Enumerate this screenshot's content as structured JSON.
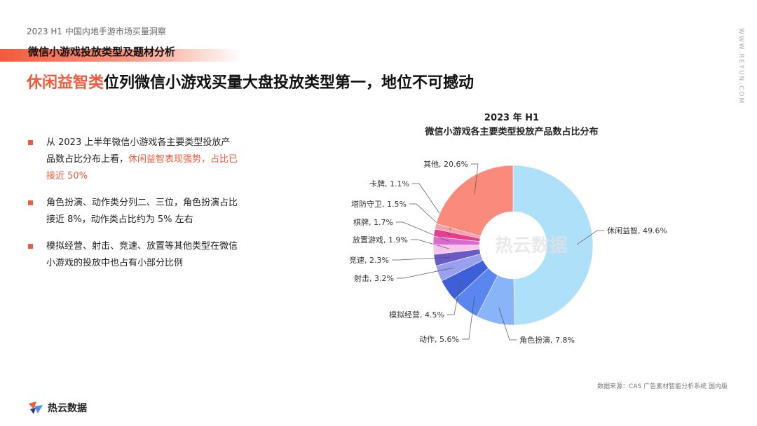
{
  "header": {
    "report_name": "2023 H1 中国内地手游市场买量洞察",
    "section_title": "微信小游戏投放类型及题材分析",
    "headline_highlight": "休闲益智类",
    "headline_rest": "位列微信小游戏买量大盘投放类型第一，地位不可撼动",
    "site": "WWW.REYUN.COM"
  },
  "bullets": [
    {
      "text": "从 2023 上半年微信小游戏各主要类型投放产品数占比分布上看，",
      "highlight": "休闲益智表现强势，占比已接近 50%"
    },
    {
      "text": "角色扮演、动作类分列二、三位，角色扮演占比接近 8%，动作类占比约为 5% 左右",
      "highlight": ""
    },
    {
      "text": "模拟经营、射击、竞速、放置等其他类型在微信小游戏的投放中也占有小部分比例",
      "highlight": ""
    }
  ],
  "chart_data": {
    "type": "pie",
    "title_line1": "2023 年 H1",
    "title_line2": "微信小游戏各主要类型投放产品数占比分布",
    "watermark": "热云数据",
    "slices": [
      {
        "label": "休闲益智",
        "value": 49.6,
        "display": "49.6%",
        "color": "#aee0fa"
      },
      {
        "label": "角色扮演",
        "value": 7.8,
        "display": "7.8%",
        "color": "#8ab4f8"
      },
      {
        "label": "动作",
        "value": 5.6,
        "display": "5.6%",
        "color": "#5b86f0"
      },
      {
        "label": "模拟经营",
        "value": 4.5,
        "display": "4.5%",
        "color": "#3f5fd8"
      },
      {
        "label": "射击",
        "value": 3.2,
        "display": "3.2%",
        "color": "#9aa0f0"
      },
      {
        "label": "竞速",
        "value": 2.3,
        "display": "2.3%",
        "color": "#6a5ac8"
      },
      {
        "label": "放置游戏",
        "value": 1.9,
        "display": "1.9%",
        "color": "#f7c4ee"
      },
      {
        "label": "棋牌",
        "value": 1.7,
        "display": "1.7%",
        "color": "#d86ad2"
      },
      {
        "label": "塔防守卫",
        "value": 1.5,
        "display": "1.5%",
        "color": "#e63d8c"
      },
      {
        "label": "卡牌",
        "value": 1.1,
        "display": "1.1%",
        "color": "#f7a0a8"
      },
      {
        "label": "其他",
        "value": 20.6,
        "display": "20.6%",
        "color": "#f98a7c"
      }
    ]
  },
  "source": "数据来源：CAS 广告素材智能分析系统 国内版",
  "brand": {
    "name": "热云数据",
    "colors": [
      "#f4593c",
      "#4a90e2",
      "#2d3a8c"
    ]
  }
}
